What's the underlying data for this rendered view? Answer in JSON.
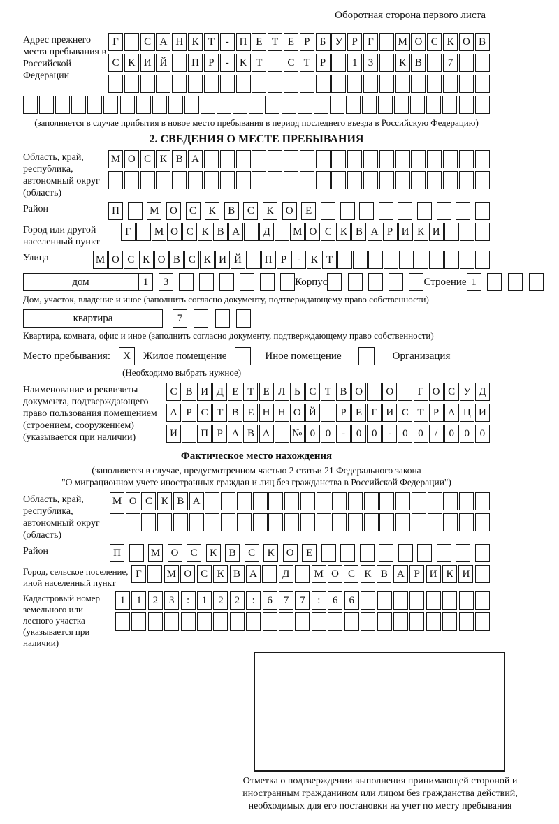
{
  "header": {
    "note": "Оборотная сторона первого листа"
  },
  "prev": {
    "label": "Адрес прежнего места пребывания в Российской Федерации",
    "r1": [
      "Г",
      "",
      "С",
      "А",
      "Н",
      "К",
      "Т",
      "-",
      "П",
      "Е",
      "Т",
      "Е",
      "Р",
      "Б",
      "У",
      "Р",
      "Г",
      "",
      "М",
      "О",
      "С",
      "К",
      "О",
      "В"
    ],
    "r2": [
      "С",
      "К",
      "И",
      "Й",
      "",
      "П",
      "Р",
      "-",
      "К",
      "Т",
      "",
      "С",
      "Т",
      "Р",
      "",
      "1",
      "3",
      "",
      "К",
      "В",
      "",
      "7",
      "",
      ""
    ],
    "r3": [
      "",
      "",
      "",
      "",
      "",
      "",
      "",
      "",
      "",
      "",
      "",
      "",
      "",
      "",
      "",
      "",
      "",
      "",
      "",
      "",
      "",
      "",
      "",
      ""
    ],
    "r4": [
      "",
      "",
      "",
      "",
      "",
      "",
      "",
      "",
      "",
      "",
      "",
      "",
      "",
      "",
      "",
      "",
      "",
      "",
      "",
      "",
      "",
      "",
      "",
      "",
      "",
      "",
      "",
      "",
      ""
    ],
    "note": "(заполняется в случае прибытия в новое место пребывания в период последнего въезда в Российскую Федерацию)"
  },
  "s2": {
    "title": "2. СВЕДЕНИЯ О МЕСТЕ ПРЕБЫВАНИЯ",
    "region_label": "Область, край, республика, автономный округ (область)",
    "region_r1": [
      "М",
      "О",
      "С",
      "К",
      "В",
      "А",
      "",
      "",
      "",
      "",
      "",
      "",
      "",
      "",
      "",
      "",
      "",
      "",
      "",
      "",
      "",
      "",
      "",
      ""
    ],
    "region_r2": [
      "",
      "",
      "",
      "",
      "",
      "",
      "",
      "",
      "",
      "",
      "",
      "",
      "",
      "",
      "",
      "",
      "",
      "",
      "",
      "",
      "",
      "",
      "",
      ""
    ],
    "district_label": "Район",
    "district_r1": [
      "П",
      "",
      "М",
      "О",
      "С",
      "К",
      "В",
      "С",
      "К",
      "О",
      "Е",
      "",
      "",
      "",
      "",
      "",
      "",
      "",
      "",
      ""
    ],
    "city_label": "Город или другой населенный пункт",
    "city_r1": [
      "Г",
      "",
      "М",
      "О",
      "С",
      "К",
      "В",
      "А",
      "",
      "Д",
      "",
      "М",
      "О",
      "С",
      "К",
      "В",
      "А",
      "Р",
      "И",
      "К",
      "И",
      "",
      "",
      ""
    ],
    "street_label": "Улица",
    "street_r1": [
      "М",
      "О",
      "С",
      "К",
      "О",
      "В",
      "С",
      "К",
      "И",
      "Й",
      "",
      "П",
      "Р",
      "-",
      "К",
      "Т",
      "",
      "",
      "",
      "",
      "",
      "",
      "",
      "",
      "",
      ""
    ],
    "house_box": "дом",
    "house_cells": [
      "1",
      "3",
      "",
      "",
      "",
      "",
      "",
      ""
    ],
    "korpus_label": "Корпус",
    "korpus_cells": [
      "",
      "",
      "",
      "",
      ""
    ],
    "stroenie_label": "Строение",
    "stroenie_cells": [
      "1",
      "",
      "",
      ""
    ],
    "house_note": "Дом, участок, владение и иное (заполнить согласно документу, подтверждающему право собственности)",
    "apt_box": "квартира",
    "apt_cells": [
      "7",
      "",
      "",
      ""
    ],
    "apt_note": "Квартира, комната, офис и иное (заполнить согласно документу, подтверждающему право собственности)",
    "stay_label": "Место пребывания:",
    "stay": [
      {
        "mark": "X",
        "label": "Жилое помещение"
      },
      {
        "mark": "",
        "label": "Иное помещение"
      },
      {
        "mark": "",
        "label": "Организация"
      }
    ],
    "choose_note": "(Необходимо выбрать нужное)",
    "doc_label": "Наименование и реквизиты документа, подтверждающего право пользования помещением (строением, сооружением) (указывается при наличии)",
    "doc_r1": [
      "С",
      "В",
      "И",
      "Д",
      "Е",
      "Т",
      "Е",
      "Л",
      "Ь",
      "С",
      "Т",
      "В",
      "О",
      "",
      "О",
      "",
      "Г",
      "О",
      "С",
      "У",
      "Д"
    ],
    "doc_r2": [
      "А",
      "Р",
      "С",
      "Т",
      "В",
      "Е",
      "Н",
      "Н",
      "О",
      "Й",
      "",
      "Р",
      "Е",
      "Г",
      "И",
      "С",
      "Т",
      "Р",
      "А",
      "Ц",
      "И"
    ],
    "doc_r3": [
      "И",
      "",
      "П",
      "Р",
      "А",
      "В",
      "А",
      "",
      "№",
      "0",
      "0",
      "-",
      "0",
      "0",
      "-",
      "0",
      "0",
      "/",
      "0",
      "0",
      "0"
    ]
  },
  "actual": {
    "title": "Фактическое место нахождения",
    "note1": "(заполняется в случае, предусмотренном частью 2 статьи 21 Федерального закона",
    "note2": "\"О миграционном учете иностранных граждан и лиц без гражданства в Российской Федерации\")",
    "region_label": "Область, край, республика, автономный округ (область)",
    "region_r1": [
      "М",
      "О",
      "С",
      "К",
      "В",
      "А",
      "",
      "",
      "",
      "",
      "",
      "",
      "",
      "",
      "",
      "",
      "",
      "",
      "",
      "",
      "",
      "",
      "",
      ""
    ],
    "region_r2": [
      "",
      "",
      "",
      "",
      "",
      "",
      "",
      "",
      "",
      "",
      "",
      "",
      "",
      "",
      "",
      "",
      "",
      "",
      "",
      "",
      "",
      "",
      "",
      ""
    ],
    "district_label": "Район",
    "district_r1": [
      "П",
      "",
      "М",
      "О",
      "С",
      "К",
      "В",
      "С",
      "К",
      "О",
      "Е",
      "",
      "",
      "",
      "",
      "",
      "",
      "",
      "",
      ""
    ],
    "city_label": "Город, сельское поселение, иной населенный пункт",
    "city_r1": [
      "Г",
      "",
      "М",
      "О",
      "С",
      "К",
      "В",
      "А",
      "",
      "Д",
      "",
      "М",
      "О",
      "С",
      "К",
      "В",
      "А",
      "Р",
      "И",
      "К",
      "И",
      ""
    ],
    "cad_label": "Кадастровый номер земельного или лесного участка (указывается при наличии)",
    "cad_r1": [
      "1",
      "1",
      "2",
      "3",
      ":",
      "1",
      "2",
      "2",
      ":",
      "6",
      "7",
      "7",
      ":",
      "6",
      "6",
      "",
      "",
      "",
      "",
      "",
      "",
      "",
      ""
    ],
    "cad_r2": [
      "",
      "",
      "",
      "",
      "",
      "",
      "",
      "",
      "",
      "",
      "",
      "",
      "",
      "",
      "",
      "",
      "",
      "",
      "",
      "",
      "",
      "",
      ""
    ],
    "stamp_note": "Отметка о подтверждении выполнения принимающей стороной и иностранным гражданином или лицом без гражданства действий, необходимых для его постановки на учет по месту пребывания"
  }
}
